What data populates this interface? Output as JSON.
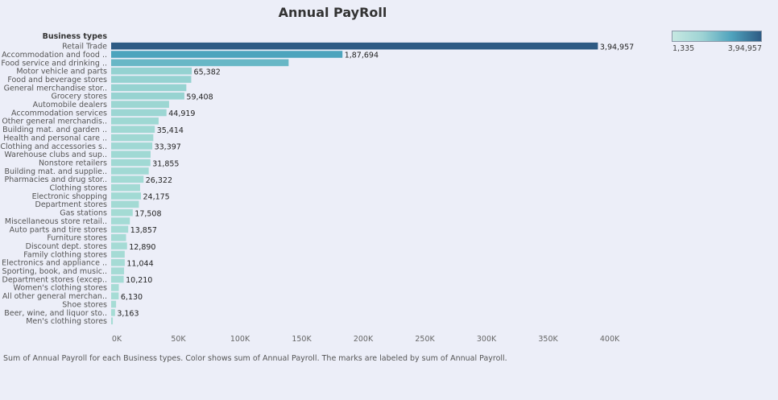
{
  "title": "Annual PayRoll",
  "caption": "Sum of Annual Payroll for each Business types.  Color shows sum of Annual Payroll.  The marks are labeled by sum of Annual Payroll.",
  "legend": {
    "min_label": "1,335",
    "max_label": "3,94,957",
    "color_low": "#c6e8e2",
    "color_high": "#2e5b84"
  },
  "colors": {
    "background": "#eceef8",
    "bar_light": "#a6dcd5",
    "bar_mid": "#4fa8c0",
    "bar_dark": "#2e5b84"
  },
  "chart_data": {
    "type": "bar",
    "orientation": "horizontal",
    "title": "Annual PayRoll",
    "category_header": "Business types",
    "xlim": [
      0,
      430000
    ],
    "x_ticks": [
      0,
      50000,
      100000,
      150000,
      200000,
      250000,
      300000,
      350000,
      400000
    ],
    "x_tick_labels": [
      "0K",
      "50K",
      "100K",
      "150K",
      "200K",
      "250K",
      "300K",
      "350K",
      "400K"
    ],
    "grid": false,
    "legend_position": "top-right",
    "categories": [
      "Retail Trade",
      "Accommodation and food ..",
      "Food service and drinking ..",
      "Motor vehicle and parts",
      "Food and beverage stores",
      "General merchandise stor..",
      "Grocery stores",
      "Automobile dealers",
      "Accommodation services",
      "Other general merchandis..",
      "Building mat. and garden ..",
      "Health and personal care ..",
      "Clothing and accessories s..",
      "Warehouse clubs and sup..",
      "Nonstore retailers",
      "Building mat. and supplie..",
      "Pharmacies and drug stor..",
      "Clothing stores",
      "Electronic shopping",
      "Department stores",
      "Gas stations",
      "Miscellaneous store retail..",
      "Auto parts and tire stores",
      "Furniture stores",
      "Discount dept. stores",
      "Family clothing stores",
      "Electronics and appliance ..",
      "Sporting, book, and music..",
      "Department stores (excep..",
      "Women's clothing stores",
      "All other general merchan..",
      "Shoe stores",
      "Beer, wine, and liquor sto..",
      "Men's clothing stores"
    ],
    "values": [
      394957,
      187694,
      144000,
      65382,
      65000,
      61000,
      59408,
      47000,
      44919,
      38500,
      35414,
      34200,
      33397,
      32000,
      31855,
      30500,
      26322,
      23500,
      24175,
      22500,
      17508,
      15200,
      13857,
      12100,
      12890,
      11000,
      11044,
      10500,
      10210,
      6200,
      6130,
      4000,
      3163,
      1335
    ],
    "data_labels": [
      "3,94,957",
      "1,87,694",
      "",
      "65,382",
      "",
      "",
      "59,408",
      "",
      "44,919",
      "",
      "35,414",
      "",
      "33,397",
      "",
      "31,855",
      "",
      "26,322",
      "",
      "24,175",
      "",
      "17,508",
      "",
      "13,857",
      "",
      "12,890",
      "",
      "11,044",
      "",
      "10,210",
      "",
      "6,130",
      "",
      "3,163",
      ""
    ]
  }
}
